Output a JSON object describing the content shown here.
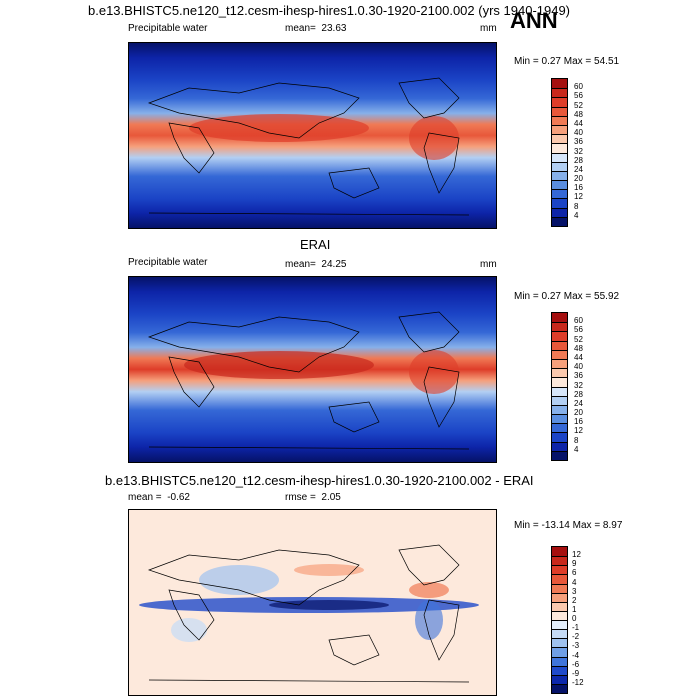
{
  "page": {
    "season": "ANN"
  },
  "panels": [
    {
      "id": "model",
      "title": "b.e13.BHISTC5.ne120_t12.cesm-ihesp-hires1.0.30-1920-2100.002 (yrs 1940-1949)",
      "variable": "Precipitable water",
      "mean_label": "mean=",
      "mean": "23.63",
      "units": "mm",
      "minmax": "Min =   0.27 Max =  54.51",
      "levels": [
        "60",
        "56",
        "52",
        "48",
        "44",
        "40",
        "36",
        "32",
        "28",
        "24",
        "20",
        "16",
        "12",
        "8",
        "4"
      ],
      "colors": [
        "#a50f0f",
        "#c8281c",
        "#de3d29",
        "#e8583a",
        "#f07a55",
        "#f6a07c",
        "#fbc9ae",
        "#fde9dc",
        "#d6e6fa",
        "#b2cff3",
        "#86b0ea",
        "#5a8ee0",
        "#3568d6",
        "#1b44c6",
        "#0d24a8",
        "#051268"
      ]
    },
    {
      "id": "obs",
      "title": "ERAI",
      "variable": "Precipitable water",
      "mean_label": "mean=",
      "mean": "24.25",
      "units": "mm",
      "minmax": "Min =   0.27 Max =  55.92",
      "levels": [
        "60",
        "56",
        "52",
        "48",
        "44",
        "40",
        "36",
        "32",
        "28",
        "24",
        "20",
        "16",
        "12",
        "8",
        "4"
      ],
      "colors": [
        "#a50f0f",
        "#c8281c",
        "#de3d29",
        "#e8583a",
        "#f07a55",
        "#f6a07c",
        "#fbc9ae",
        "#fde9dc",
        "#d6e6fa",
        "#b2cff3",
        "#86b0ea",
        "#5a8ee0",
        "#3568d6",
        "#1b44c6",
        "#0d24a8",
        "#051268"
      ]
    },
    {
      "id": "diff",
      "title": "b.e13.BHISTC5.ne120_t12.cesm-ihesp-hires1.0.30-1920-2100.002 - ERAI",
      "mean_label": "mean =",
      "mean": "-0.62",
      "rmse_label": "rmse =",
      "rmse": "2.05",
      "minmax": "Min = -13.14 Max =   8.97",
      "levels": [
        "12",
        "9",
        "6",
        "4",
        "3",
        "2",
        "1",
        "0",
        "-1",
        "-2",
        "-3",
        "-4",
        "-6",
        "-9",
        "-12"
      ],
      "colors": [
        "#a50f0f",
        "#c8281c",
        "#de3d29",
        "#e8583a",
        "#f07a55",
        "#f6a07c",
        "#fbc9ae",
        "#fde9dc",
        "#e3eefb",
        "#c5dbf6",
        "#9fc2ef",
        "#6f9fe6",
        "#3f75dc",
        "#1f4acb",
        "#0d28ab",
        "#051268"
      ]
    }
  ]
}
